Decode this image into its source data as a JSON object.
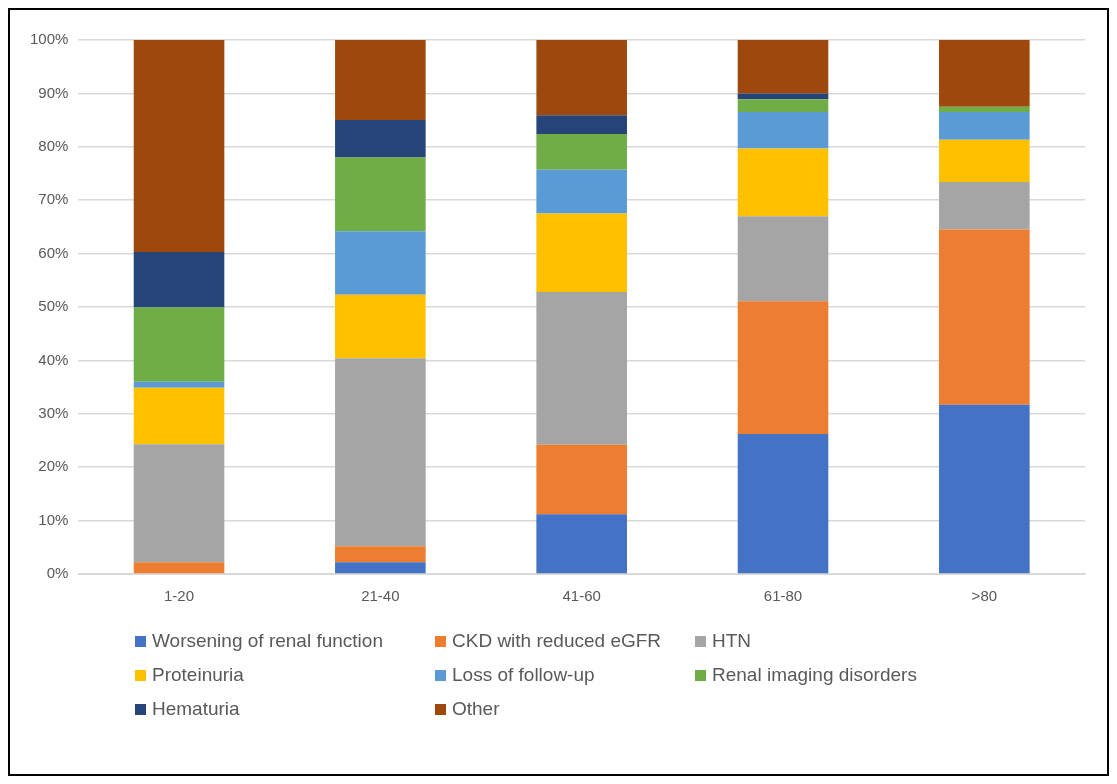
{
  "chart_data": {
    "type": "bar",
    "stacked": true,
    "categories": [
      "1-20",
      "21-40",
      "41-60",
      "61-80",
      ">80"
    ],
    "series": [
      {
        "name": "Worsening of renal function",
        "color": "#4472c4",
        "values": [
          0,
          2.2,
          11.2,
          26.2,
          31.7
        ]
      },
      {
        "name": "CKD with reduced eGFR",
        "color": "#ed7d31",
        "values": [
          2.2,
          3.0,
          13.0,
          24.9,
          32.8
        ]
      },
      {
        "name": "HTN",
        "color": "#a5a5a5",
        "values": [
          22.1,
          35.2,
          28.6,
          15.9,
          8.9
        ]
      },
      {
        "name": "Proteinuria",
        "color": "#ffc000",
        "values": [
          10.6,
          11.9,
          14.7,
          12.7,
          7.9
        ]
      },
      {
        "name": "Loss of follow-up",
        "color": "#5b9bd5",
        "values": [
          1.1,
          11.9,
          8.2,
          6.8,
          5.2
        ]
      },
      {
        "name": "Renal imaging disorders",
        "color": "#70ad47",
        "values": [
          13.9,
          13.8,
          6.7,
          2.4,
          1.0
        ]
      },
      {
        "name": "Hematuria",
        "color": "#264478",
        "values": [
          10.4,
          7.0,
          3.5,
          1.1,
          0
        ]
      },
      {
        "name": "Other",
        "color": "#9e480e",
        "values": [
          39.7,
          15.0,
          14.1,
          10.0,
          12.5
        ]
      }
    ],
    "ylim": [
      0,
      100
    ],
    "yticks": [
      {
        "value": 0,
        "label": "0%"
      },
      {
        "value": 10,
        "label": "10%"
      },
      {
        "value": 20,
        "label": "20%"
      },
      {
        "value": 30,
        "label": "30%"
      },
      {
        "value": 40,
        "label": "40%"
      },
      {
        "value": 50,
        "label": "50%"
      },
      {
        "value": 60,
        "label": "60%"
      },
      {
        "value": 70,
        "label": "70%"
      },
      {
        "value": 80,
        "label": "80%"
      },
      {
        "value": 90,
        "label": "90%"
      },
      {
        "value": 100,
        "label": "100%"
      }
    ],
    "grid": "y",
    "legend": "bottom"
  }
}
